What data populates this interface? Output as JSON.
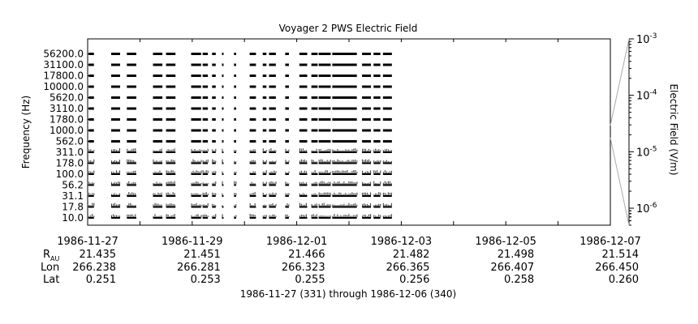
{
  "chart_data": {
    "type": "heatmap",
    "title": "Voyager 2 PWS Electric Field",
    "ylabel": "Frequency (Hz)",
    "zlabel": "Electric Field (V/m)",
    "xlabel": "1986-11-27 (331) through 1986-12-06 (340)",
    "x_range": [
      "1986-11-27",
      "1986-12-07"
    ],
    "x_tick_labels": [
      "1986-11-27",
      "1986-11-29",
      "1986-12-01",
      "1986-12-03",
      "1986-12-05",
      "1986-12-07"
    ],
    "channels": [
      "56200.0",
      "31100.0",
      "17800.0",
      "10000.0",
      "5620.0",
      "3110.0",
      "1780.0",
      "1000.0",
      "562.0",
      "311.0",
      "178.0",
      "100.0",
      "56.2",
      "31.1",
      "17.8",
      "10.0"
    ],
    "colorbar": {
      "scale": "log",
      "range": [
        5e-07,
        0.001
      ],
      "tick_labels": [
        "10",
        "10",
        "10",
        "10"
      ],
      "tick_exponents": [
        "-3",
        "-4",
        "-5",
        "-6"
      ]
    },
    "ephemeris": {
      "labels": [
        "R",
        "Lon",
        "Lat"
      ],
      "r_subscript": "AU",
      "R": [
        "21.435",
        "21.451",
        "21.466",
        "21.482",
        "21.498",
        "21.514"
      ],
      "Lon": [
        "266.238",
        "266.281",
        "266.323",
        "266.365",
        "266.407",
        "266.450"
      ],
      "Lat": [
        "0.251",
        "0.253",
        "0.255",
        "0.256",
        "0.258",
        "0.260"
      ]
    },
    "data_segments_days": [
      [
        0.02,
        0.12
      ],
      [
        0.45,
        0.62
      ],
      [
        0.75,
        0.93
      ],
      [
        1.25,
        1.43
      ],
      [
        1.5,
        1.68
      ],
      [
        1.98,
        2.17
      ],
      [
        2.2,
        2.3
      ],
      [
        2.38,
        2.45
      ],
      [
        2.57,
        2.6
      ],
      [
        2.8,
        2.84
      ],
      [
        3.1,
        3.22
      ],
      [
        3.35,
        3.42
      ],
      [
        3.47,
        3.6
      ],
      [
        3.78,
        3.85
      ],
      [
        4.05,
        4.2
      ],
      [
        4.28,
        4.4
      ],
      [
        4.42,
        4.65
      ],
      [
        4.68,
        5.15
      ],
      [
        5.25,
        5.42
      ],
      [
        5.47,
        5.6
      ],
      [
        5.65,
        5.82
      ]
    ]
  }
}
